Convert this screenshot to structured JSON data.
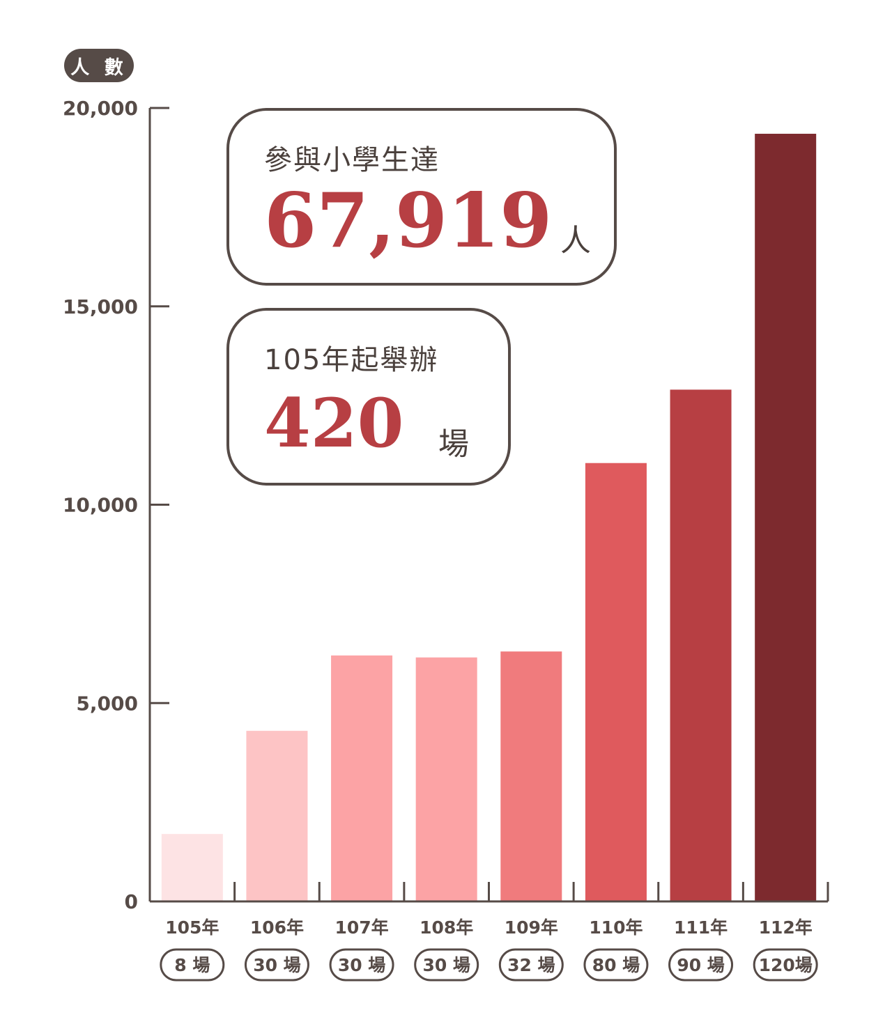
{
  "chart_data": {
    "type": "bar",
    "ylabel": "人 數",
    "ylim": [
      0,
      20000
    ],
    "yticks": [
      0,
      5000,
      10000,
      15000,
      20000
    ],
    "ytick_labels": [
      "0",
      "5,000",
      "10,000",
      "15,000",
      "20,000"
    ],
    "categories": [
      "105年",
      "106年",
      "107年",
      "108年",
      "109年",
      "110年",
      "111年",
      "112年"
    ],
    "sessions": [
      "8 場",
      "30 場",
      "30 場",
      "30 場",
      "32 場",
      "80 場",
      "90 場",
      "120場"
    ],
    "values": [
      1700,
      4300,
      6200,
      6150,
      6300,
      11050,
      12900,
      19350
    ],
    "colors": [
      "#fde3e4",
      "#fdc4c5",
      "#fca3a5",
      "#fca3a5",
      "#f07b7d",
      "#df5a5d",
      "#b73f43",
      "#7d2a2e"
    ]
  },
  "summary": {
    "total_caption": "參與小學生達",
    "total_value": "67,919",
    "total_unit": "人",
    "events_caption": "105年起舉辦",
    "events_value": "420",
    "events_unit": "場"
  },
  "colors": {
    "axis": "#564b47",
    "highlight": "#b73f43"
  }
}
